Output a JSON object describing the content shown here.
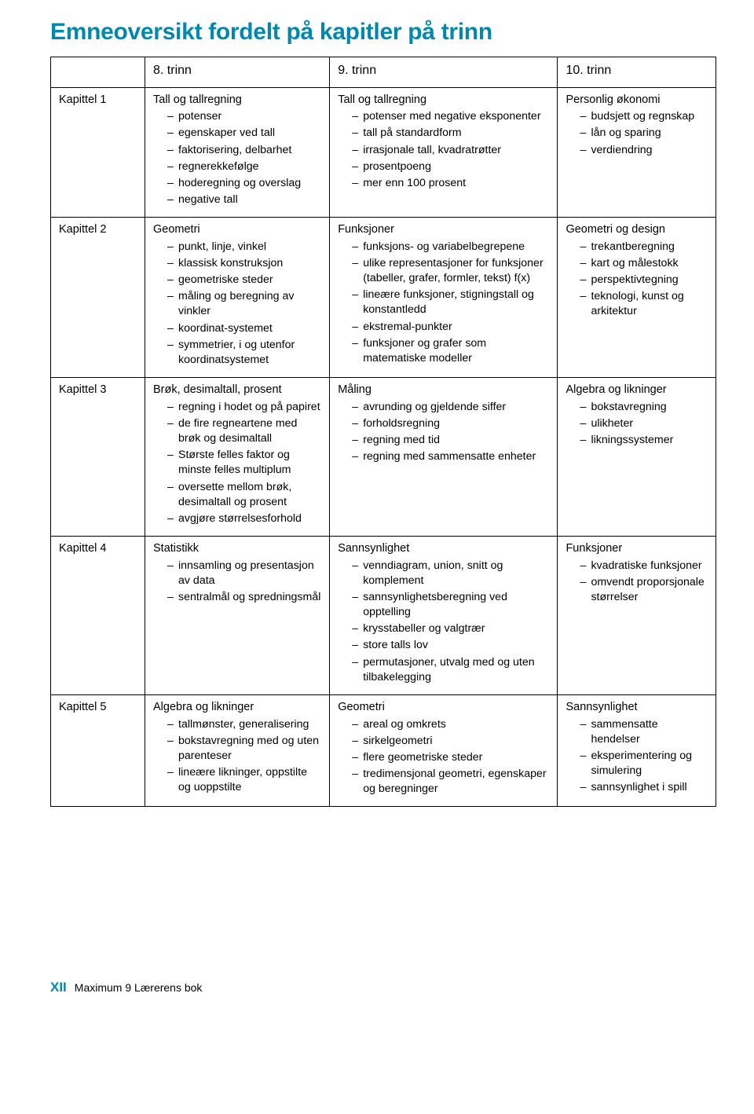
{
  "title": "Emneoversikt fordelt på kapitler på trinn",
  "headers": {
    "c1": "8. trinn",
    "c2": "9. trinn",
    "c3": "10. trinn"
  },
  "rows": {
    "r1": {
      "label": "Kapittel 1",
      "c1": {
        "title": "Tall og tallregning",
        "items": [
          "potenser",
          "egenskaper ved tall",
          "faktorisering, delbarhet",
          "regnerekkefølge",
          "hoderegning og overslag",
          "negative tall"
        ]
      },
      "c2": {
        "title": "Tall og tallregning",
        "items": [
          "potenser med negative eksponenter",
          "tall på standardform",
          "irrasjonale tall, kvadratrøtter",
          "prosentpoeng",
          "mer enn 100 prosent"
        ]
      },
      "c3": {
        "title": "Personlig økonomi",
        "items": [
          "budsjett og regnskap",
          "lån og sparing",
          "verdiendring"
        ]
      }
    },
    "r2": {
      "label": "Kapittel 2",
      "c1": {
        "title": "Geometri",
        "items": [
          "punkt, linje, vinkel",
          "klassisk konstruksjon",
          "geometriske steder",
          "måling og beregning av vinkler",
          "koordinat-systemet",
          "symmetrier, i og utenfor koordinatsystemet"
        ]
      },
      "c2": {
        "title": "Funksjoner",
        "items": [
          "funksjons- og variabel­begrepene",
          "ulike representasjoner for funksjoner (tabeller, grafer, formler, tekst) f(x)",
          "lineære funksjoner, stigningstall og konstantledd",
          "ekstremal-punkter",
          "funksjoner og grafer som matematiske modeller"
        ]
      },
      "c3": {
        "title": "Geometri og design",
        "items": [
          "trekantberegning",
          "kart og målestokk",
          "perspektivtegning",
          "teknologi, kunst og arkitektur"
        ]
      }
    },
    "r3": {
      "label": "Kapittel 3",
      "c1": {
        "title": "Brøk, desimaltall, prosent",
        "items": [
          "regning i hodet og på papiret",
          "de fire regneartene med brøk og desimaltall",
          "Største felles faktor og minste felles multiplum",
          "oversette mellom brøk, desimaltall og prosent",
          "avgjøre størrelsesforhold"
        ]
      },
      "c2": {
        "title": "Måling",
        "items": [
          "avrunding og gjeldende siffer",
          "forholdsregning",
          "regning med tid",
          "regning med sammensatte enheter"
        ]
      },
      "c3": {
        "title": "Algebra og likninger",
        "items": [
          "bokstavregning",
          "ulikheter",
          "likningssystemer"
        ]
      }
    },
    "r4": {
      "label": "Kapittel 4",
      "c1": {
        "title": "Statistikk",
        "items": [
          "innsamling og presentasjon av data",
          "sentralmål og spredningsmål"
        ]
      },
      "c2": {
        "title": "Sannsynlighet",
        "items": [
          "venndiagram, union, snitt og komplement",
          "sannsynlighets­beregning ved opptelling",
          "krysstabeller og valgtrær",
          "store talls lov",
          "permutasjoner, utvalg med og uten tilbakelegging"
        ]
      },
      "c3": {
        "title": "Funksjoner",
        "items": [
          "kvadratiske funksjoner",
          "omvendt proporsjonale størrelser"
        ]
      }
    },
    "r5": {
      "label": "Kapittel 5",
      "c1": {
        "title": "Algebra og likninger",
        "items": [
          "tallmønster, generalisering",
          "bokstavregning med og uten parenteser",
          "lineære likninger, oppstilte og uoppstilte"
        ]
      },
      "c2": {
        "title": "Geometri",
        "items": [
          "areal og omkrets",
          "sirkelgeometri",
          "flere geometriske steder",
          "tredimensjonal geometri, egenskaper og beregninger"
        ]
      },
      "c3": {
        "title": "Sannsynlighet",
        "items": [
          "sammensatte hendelser",
          "eksperimentering og simulering",
          "sannsynlighet i spill"
        ]
      }
    }
  },
  "footer": {
    "page": "XII",
    "book1": "Maximum 9",
    "book2": "Lærerens bok"
  }
}
